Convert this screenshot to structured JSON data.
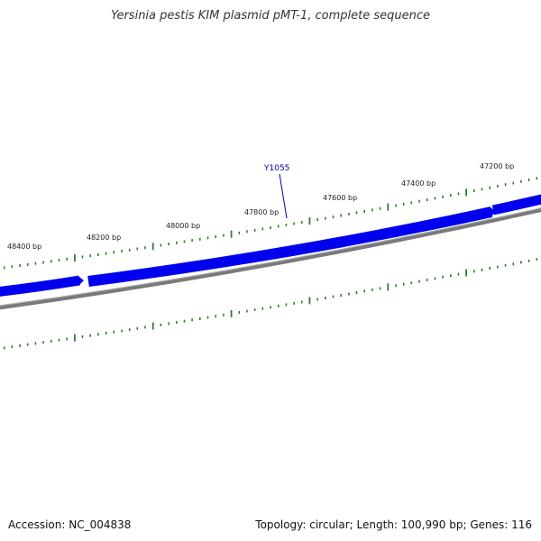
{
  "title": "Yersinia pestis KIM plasmid pMT-1, complete sequence",
  "colors": {
    "gene": "#0000ee",
    "backbone": "#7a7a7a",
    "ticks": "#2e7d2e",
    "gene_label": "#0000bb"
  },
  "map": {
    "tick_labels": [
      "48400 bp",
      "48200 bp",
      "48000 bp",
      "47800 bp",
      "47600 bp",
      "47400 bp",
      "47200 bp"
    ],
    "gene_label": "Y1055"
  },
  "footer": {
    "accession": "Accession: NC_004838",
    "summary": "Topology: circular; Length: 100,990 bp; Genes: 116"
  }
}
